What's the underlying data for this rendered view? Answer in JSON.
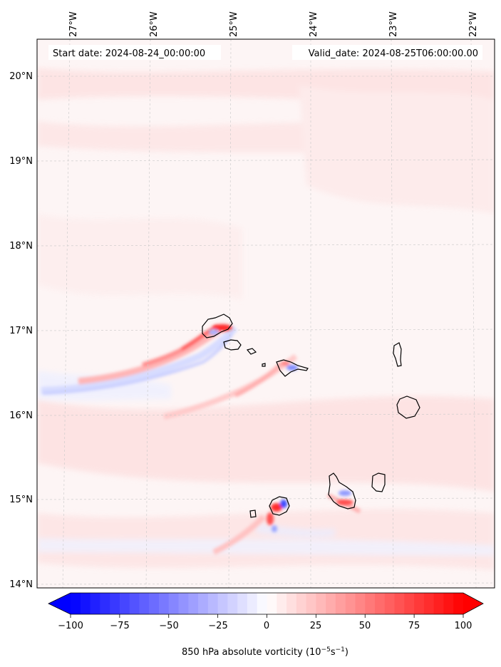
{
  "header": {
    "start_date": "Start date: 2024-08-24_00:00:00",
    "valid_date": "Valid_date: 2024-08-25T06:00:00.00"
  },
  "lon_labels": [
    "27°W",
    "26°W",
    "25°W",
    "24°W",
    "23°W",
    "22°W"
  ],
  "lat_labels": [
    "20°N",
    "19°N",
    "18°N",
    "17°N",
    "16°N",
    "15°N",
    "14°N"
  ],
  "colorbar": {
    "ticks": [
      "−100",
      "−75",
      "−50",
      "−25",
      "0",
      "25",
      "50",
      "75",
      "100"
    ],
    "label_main": "850 hPa absolute vorticity (10",
    "label_sup1": "−5",
    "label_mid": "s",
    "label_sup2": "−1",
    "label_end": ")",
    "min": -100,
    "max": 100,
    "step": 5,
    "colormap": "bwr",
    "extend": "both"
  },
  "colors": {
    "negative": "#0000ff",
    "zero": "#ffffff",
    "positive": "#ff0000",
    "background_field": "#fdf1f1",
    "coastline": "#000000",
    "gridline": "#cccccc"
  }
}
